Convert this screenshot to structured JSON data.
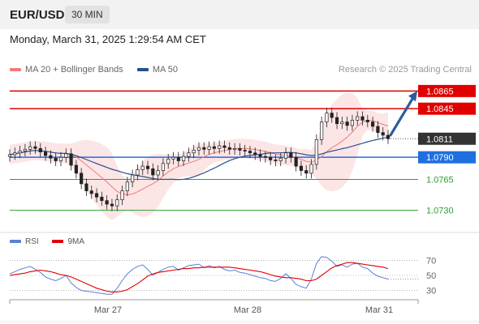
{
  "header": {
    "pair": "EUR/USD",
    "timeframe": "30 MIN"
  },
  "datetime": "Monday, March 31, 2025 1:29:54 AM CET",
  "legend_top": [
    {
      "label": "MA 20 + Bollinger Bands",
      "color": "#f07b7b"
    },
    {
      "label": "MA 50",
      "color": "#2b4f8c"
    }
  ],
  "credit": "Research © 2025 Trading Central",
  "legend_bottom": [
    {
      "label": "RSI",
      "color": "#5b7fd6"
    },
    {
      "label": "9MA",
      "color": "#e00000"
    }
  ],
  "colors": {
    "resistance": "#e00000",
    "support": "#2ca02c",
    "pivot": "#1f6fe0",
    "current": "#333333",
    "ma50": "#2b4f8c",
    "ma20": "#f07b7b",
    "band_fill": "#fbdede",
    "candle": "#222222",
    "arrow": "#2b5c9e"
  },
  "chart_data": [
    {
      "type": "candlestick",
      "title": "EUR/USD 30 MIN",
      "x_ticks": [
        "Mar 27",
        "Mar 28",
        "Mar 31"
      ],
      "ylim": [
        1.0715,
        1.088
      ],
      "levels": [
        {
          "value": 1.0865,
          "label": "1.0865",
          "kind": "resistance"
        },
        {
          "value": 1.0845,
          "label": "1.0845",
          "kind": "resistance"
        },
        {
          "value": 1.0811,
          "label": "1.0811",
          "kind": "current"
        },
        {
          "value": 1.079,
          "label": "1.0790",
          "kind": "pivot"
        },
        {
          "value": 1.0765,
          "label": "1.0765",
          "kind": "support"
        },
        {
          "value": 1.073,
          "label": "1.0730",
          "kind": "support"
        }
      ],
      "close": [
        1.0793,
        1.0795,
        1.0797,
        1.0799,
        1.0802,
        1.08,
        1.0796,
        1.0792,
        1.0789,
        1.0786,
        1.079,
        1.0794,
        1.0781,
        1.0772,
        1.076,
        1.0752,
        1.0749,
        1.0745,
        1.0741,
        1.0737,
        1.0735,
        1.0742,
        1.0752,
        1.0762,
        1.077,
        1.0776,
        1.078,
        1.0777,
        1.077,
        1.0775,
        1.0783,
        1.0788,
        1.079,
        1.0786,
        1.0791,
        1.0795,
        1.0798,
        1.0801,
        1.0799,
        1.0802,
        1.08,
        1.0803,
        1.0801,
        1.0799,
        1.08,
        1.0798,
        1.0797,
        1.0795,
        1.0793,
        1.0791,
        1.079,
        1.0787,
        1.0786,
        1.0789,
        1.0795,
        1.079,
        1.078,
        1.0775,
        1.0772,
        1.0782,
        1.081,
        1.083,
        1.084,
        1.0835,
        1.0828,
        1.083,
        1.0826,
        1.0832,
        1.0836,
        1.0832,
        1.083,
        1.0825,
        1.0818,
        1.0815,
        1.0811
      ],
      "indicators": {
        "ma20": "moving average of close (20 periods) with Bollinger Bands",
        "ma50": "moving average of close (50 periods)"
      },
      "projection": {
        "from": 1.0815,
        "to": 1.0865,
        "direction": "up"
      }
    },
    {
      "type": "line",
      "title": "RSI",
      "y_ticks": [
        70,
        50,
        30
      ],
      "ylim": [
        22,
        78
      ],
      "series": [
        {
          "name": "RSI",
          "values": [
            52,
            55,
            58,
            60,
            62,
            58,
            54,
            48,
            45,
            43,
            46,
            50,
            40,
            34,
            30,
            29,
            28,
            27,
            26,
            25,
            25,
            33,
            43,
            52,
            58,
            62,
            64,
            58,
            50,
            54,
            58,
            61,
            62,
            57,
            60,
            63,
            64,
            65,
            60,
            63,
            60,
            62,
            58,
            56,
            57,
            54,
            53,
            51,
            49,
            47,
            46,
            43,
            42,
            46,
            52,
            46,
            38,
            35,
            33,
            45,
            66,
            75,
            74,
            69,
            62,
            64,
            61,
            65,
            66,
            61,
            59,
            53,
            49,
            47,
            45
          ]
        },
        {
          "name": "9MA",
          "values": [
            50,
            51,
            52,
            53,
            55,
            56,
            57,
            56,
            55,
            53,
            51,
            50,
            48,
            45,
            42,
            39,
            36,
            33,
            31,
            29,
            28,
            28,
            29,
            31,
            35,
            39,
            44,
            49,
            52,
            54,
            55,
            56,
            57,
            58,
            59,
            59,
            60,
            60,
            61,
            61,
            61,
            61,
            61,
            61,
            60,
            59,
            58,
            57,
            56,
            55,
            53,
            51,
            49,
            48,
            47,
            47,
            46,
            45,
            43,
            43,
            45,
            50,
            55,
            60,
            63,
            65,
            67,
            67,
            66,
            65,
            64,
            63,
            62,
            61,
            59
          ]
        }
      ]
    }
  ]
}
